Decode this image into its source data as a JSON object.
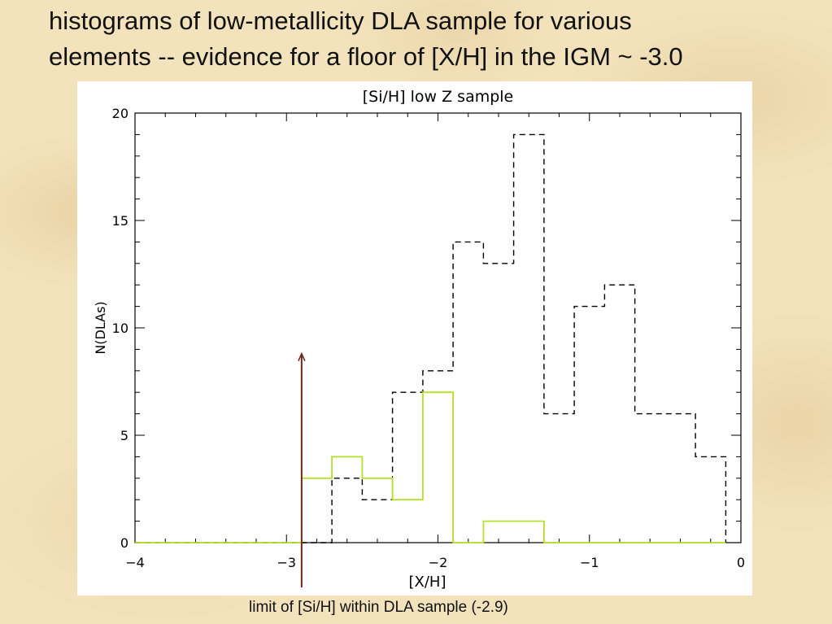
{
  "slide": {
    "title_line1": "histograms of low-metallicity DLA sample for various",
    "title_line2": "elements -- evidence for a floor of [X/H] in the IGM ~ -3.0",
    "caption": "limit of [Si/H] within DLA sample (-2.9)"
  },
  "chart_data": {
    "type": "histogram",
    "title": "[Si/H] low Z sample",
    "xlabel": "[X/H]",
    "ylabel": "N(DLAs)",
    "xlim": [
      -4,
      0
    ],
    "ylim": [
      0,
      20
    ],
    "x_ticks": [
      -4,
      -3,
      -2,
      -1,
      0
    ],
    "x_tick_labels": [
      "−4",
      "−3",
      "−2",
      "−1",
      "0"
    ],
    "y_ticks": [
      0,
      5,
      10,
      15,
      20
    ],
    "y_tick_labels": [
      "0",
      "5",
      "10",
      "15",
      "20"
    ],
    "bin_width": 0.2,
    "series": [
      {
        "style": "dashed",
        "color": "#000000",
        "bin_edges": [
          -4.1,
          -3.9,
          -3.7,
          -3.5,
          -3.3,
          -3.1,
          -2.9,
          -2.7,
          -2.5,
          -2.3,
          -2.1,
          -1.9,
          -1.7,
          -1.5,
          -1.3,
          -1.1,
          -0.9,
          -0.7,
          -0.5,
          -0.3,
          -0.1
        ],
        "counts": [
          0,
          0,
          0,
          0,
          0,
          0,
          0,
          3,
          2,
          7,
          8,
          14,
          13,
          19,
          6,
          11,
          12,
          6,
          6,
          4
        ]
      },
      {
        "style": "solid",
        "color": "#b5e02a",
        "bin_edges": [
          -4.1,
          -3.9,
          -3.7,
          -3.5,
          -3.3,
          -3.1,
          -2.9,
          -2.7,
          -2.5,
          -2.3,
          -2.1,
          -1.9,
          -1.7,
          -1.5,
          -1.3,
          -1.1,
          -0.9,
          -0.7,
          -0.5,
          -0.3,
          -0.1
        ],
        "counts": [
          0,
          0,
          0,
          0,
          0,
          0,
          3,
          4,
          3,
          2,
          7,
          0,
          1,
          1,
          0,
          0,
          0,
          0,
          0,
          0
        ]
      }
    ],
    "annotation": {
      "type": "arrow",
      "x": -2.9,
      "y_to": 8.8,
      "color": "#6b2a1a"
    }
  }
}
